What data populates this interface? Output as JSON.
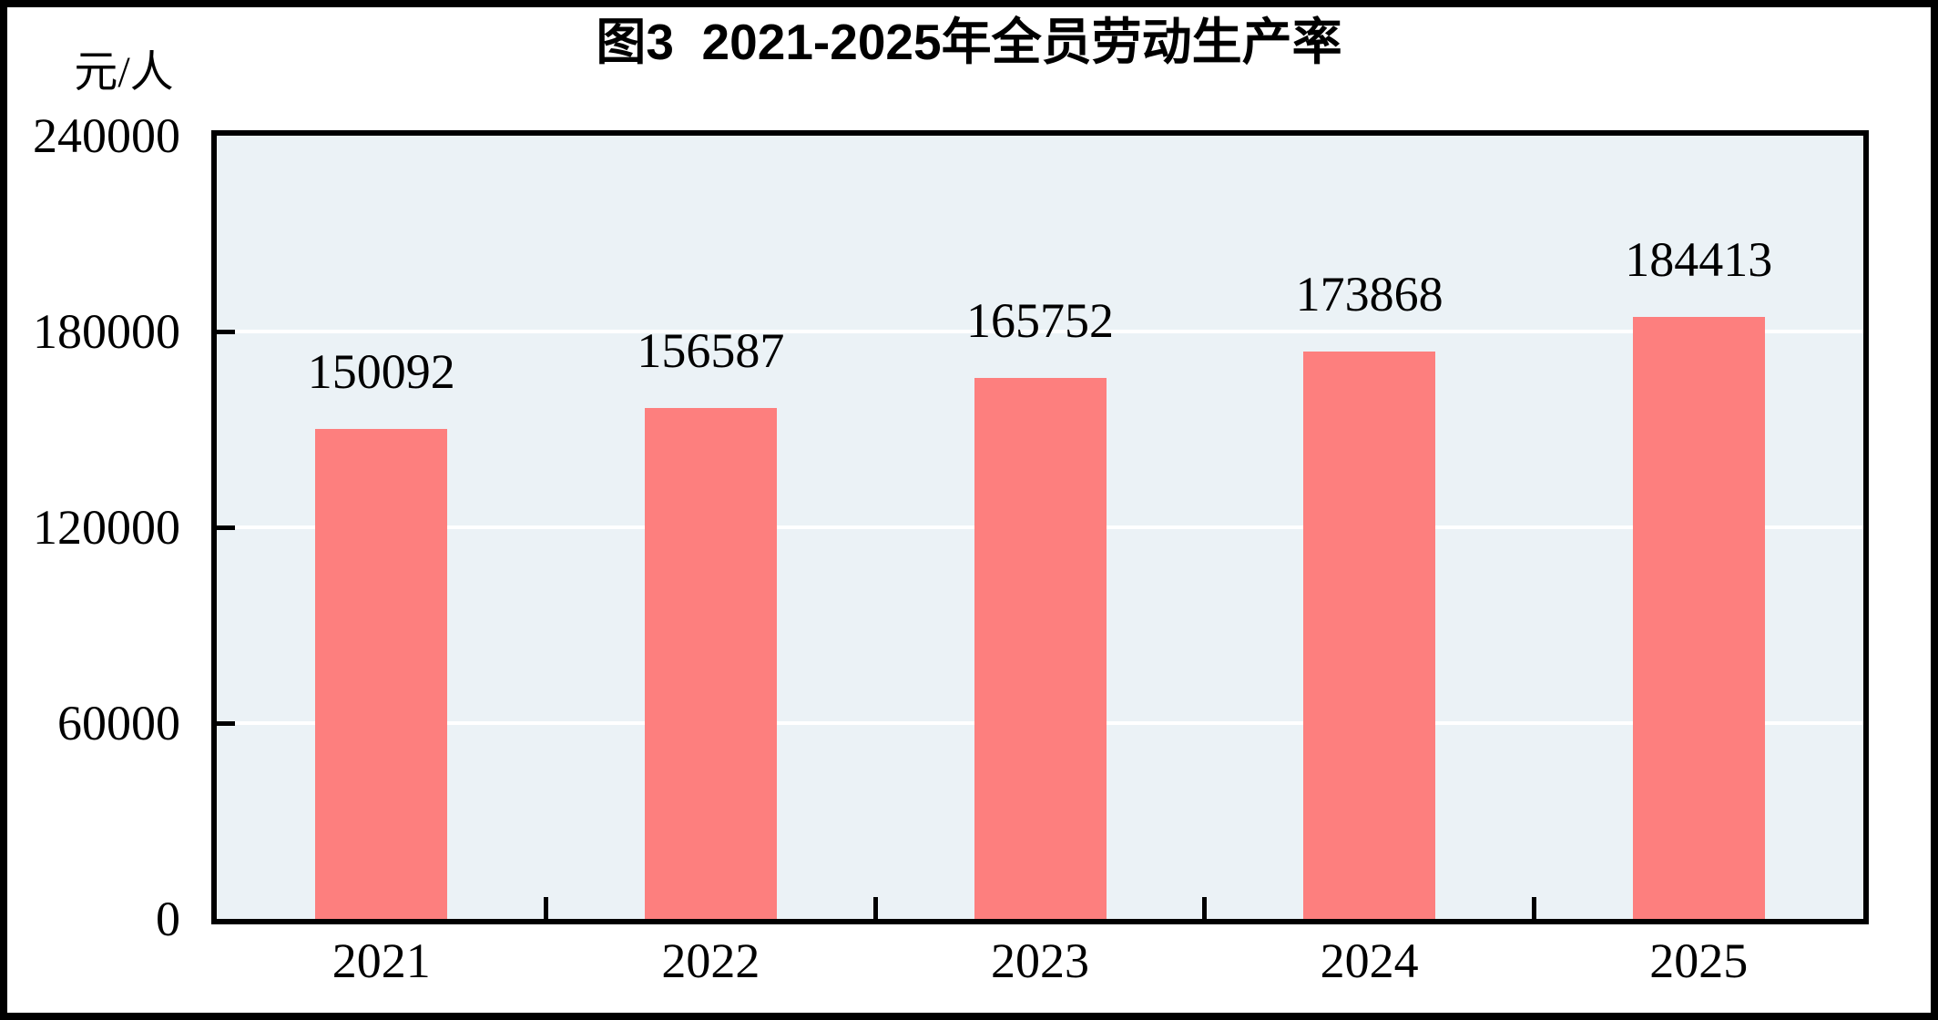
{
  "chart_data": {
    "type": "bar",
    "title": "图3  2021-2025年全员劳动生产率",
    "unit_label": "元/人",
    "categories": [
      "2021",
      "2022",
      "2023",
      "2024",
      "2025"
    ],
    "values": [
      150092,
      156587,
      165752,
      173868,
      184413
    ],
    "value_labels": [
      "150092",
      "156587",
      "165752",
      "173868",
      "184413"
    ],
    "ylim": [
      0,
      240000
    ],
    "yticks": [
      0,
      60000,
      120000,
      180000,
      240000
    ],
    "ytick_labels": [
      "0",
      "60000",
      "120000",
      "180000",
      "240000"
    ],
    "xlabel": "",
    "ylabel": "元/人",
    "legend": "none",
    "grid": "horizontal white gridlines at y ticks",
    "colors": {
      "bar": "#fd7f7e",
      "plot_background": "#ebf2f6",
      "gridline": "#ffffff",
      "axis": "#000000",
      "text": "#000000",
      "page_background": "#ffffff",
      "outer_frame": "#000000"
    }
  }
}
